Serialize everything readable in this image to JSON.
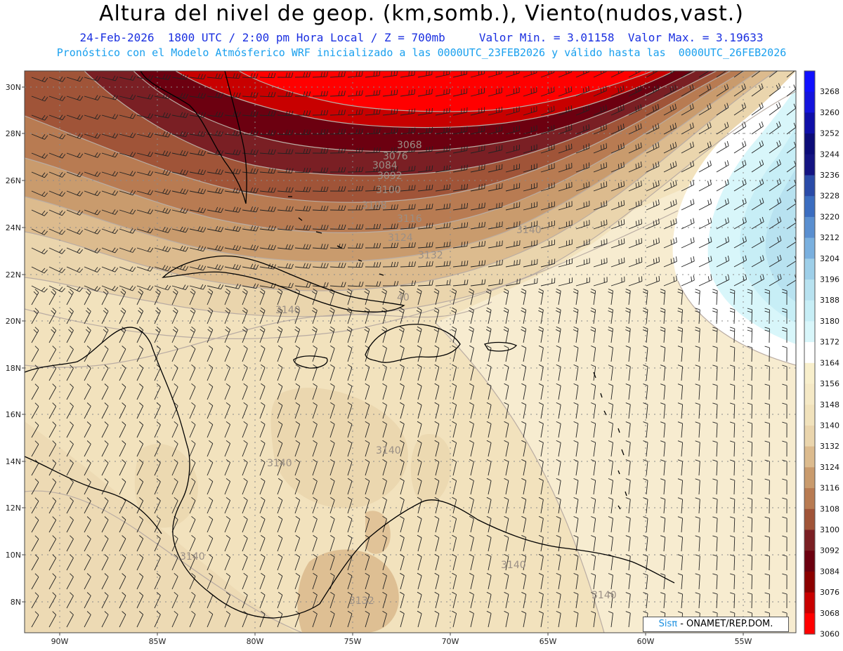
{
  "header": {
    "title": "Altura del nivel de geop. (km,somb.), Viento(nudos,vast.)",
    "date": "24-Feb-2026",
    "time_info": "1800 UTC / 2:00 pm Hora Local / Z = 700mb",
    "min_value": "Valor Min. = 3.01158",
    "max_value": "Valor Max. = 3.19633",
    "model_info": "Pronóstico con el Modelo Atmósferico WRF inicializado a las 0000UTC_23FEB2026 y válido hasta las  0000UTC_26FEB2026"
  },
  "map": {
    "lat_ticks": [
      "30N",
      "28N",
      "26N",
      "24N",
      "22N",
      "20N",
      "18N",
      "16N",
      "14N",
      "12N",
      "10N",
      "8N"
    ],
    "lon_ticks": [
      "90W",
      "85W",
      "80W",
      "75W",
      "70W",
      "65W",
      "60W",
      "55W"
    ],
    "contour_labels": [
      "3068",
      "3076",
      "3084",
      "3092",
      "3100",
      "3108",
      "3116",
      "3124",
      "3132",
      "3140",
      "3140",
      "3140",
      "3140",
      "3140",
      "3140",
      "3140",
      "3132",
      "40"
    ],
    "colors": {
      "high_low_red": "#ff0000",
      "tan": "#f2e2bd",
      "cyan": "#c8f0f6",
      "coast": "#000000",
      "grid": "#999999"
    }
  },
  "colorbar": {
    "levels": [
      "3268",
      "3260",
      "3252",
      "3244",
      "3236",
      "3228",
      "3220",
      "3212",
      "3204",
      "3196",
      "3188",
      "3180",
      "3172",
      "3164",
      "3156",
      "3148",
      "3140",
      "3132",
      "3124",
      "3116",
      "3108",
      "3100",
      "3092",
      "3084",
      "3076",
      "3068",
      "3060"
    ],
    "colors": [
      "#1010ff",
      "#1414dd",
      "#0f0fa8",
      "#0c0c78",
      "#141482",
      "#2a4ba8",
      "#3b6dc0",
      "#5a8fd0",
      "#7ab0df",
      "#9ecfe9",
      "#b8e2f0",
      "#c7eef6",
      "#d8f6fa",
      "#ffffff",
      "#f8efcc",
      "#f5e9c6",
      "#f1e2bc",
      "#ead5ad",
      "#dcbb8e",
      "#c99b6d",
      "#b87b52",
      "#a05438",
      "#7a1f24",
      "#6c0010",
      "#8b0000",
      "#c80000",
      "#ff0000"
    ]
  },
  "credit": {
    "brand": "Sisπ",
    "text": " - ONAMET/REP.DOM."
  }
}
